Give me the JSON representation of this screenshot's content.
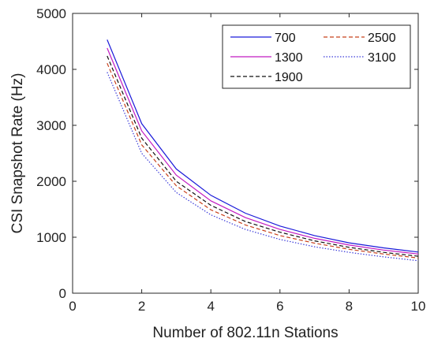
{
  "chart_data": {
    "type": "line",
    "xlabel": "Number of 802.11n Stations",
    "ylabel": "CSI Snapshot Rate (Hz)",
    "xlim": [
      0,
      10
    ],
    "ylim": [
      0,
      5000
    ],
    "xticks": [
      0,
      2,
      4,
      6,
      8,
      10
    ],
    "yticks": [
      0,
      1000,
      2000,
      3000,
      4000,
      5000
    ],
    "grid": false,
    "legend_position": "top-right",
    "x": [
      1,
      2,
      3,
      4,
      5,
      6,
      7,
      8,
      9,
      10
    ],
    "series": [
      {
        "name": "700",
        "color": "#1a1ad9",
        "style": "solid",
        "values": [
          4530,
          3030,
          2220,
          1750,
          1430,
          1200,
          1030,
          900,
          810,
          735
        ]
      },
      {
        "name": "1300",
        "color": "#c21bc2",
        "style": "solid",
        "values": [
          4380,
          2900,
          2110,
          1650,
          1350,
          1140,
          980,
          860,
          770,
          700
        ]
      },
      {
        "name": "1900",
        "color": "#111111",
        "style": "dashed",
        "values": [
          4240,
          2770,
          2000,
          1570,
          1280,
          1090,
          935,
          820,
          730,
          660
        ]
      },
      {
        "name": "2500",
        "color": "#c8401b",
        "style": "dashed",
        "values": [
          4110,
          2650,
          1920,
          1490,
          1220,
          1030,
          895,
          785,
          700,
          630
        ]
      },
      {
        "name": "3100",
        "color": "#3a3ad9",
        "style": "dotted",
        "values": [
          3950,
          2500,
          1800,
          1400,
          1140,
          960,
          830,
          730,
          650,
          580
        ]
      }
    ]
  }
}
